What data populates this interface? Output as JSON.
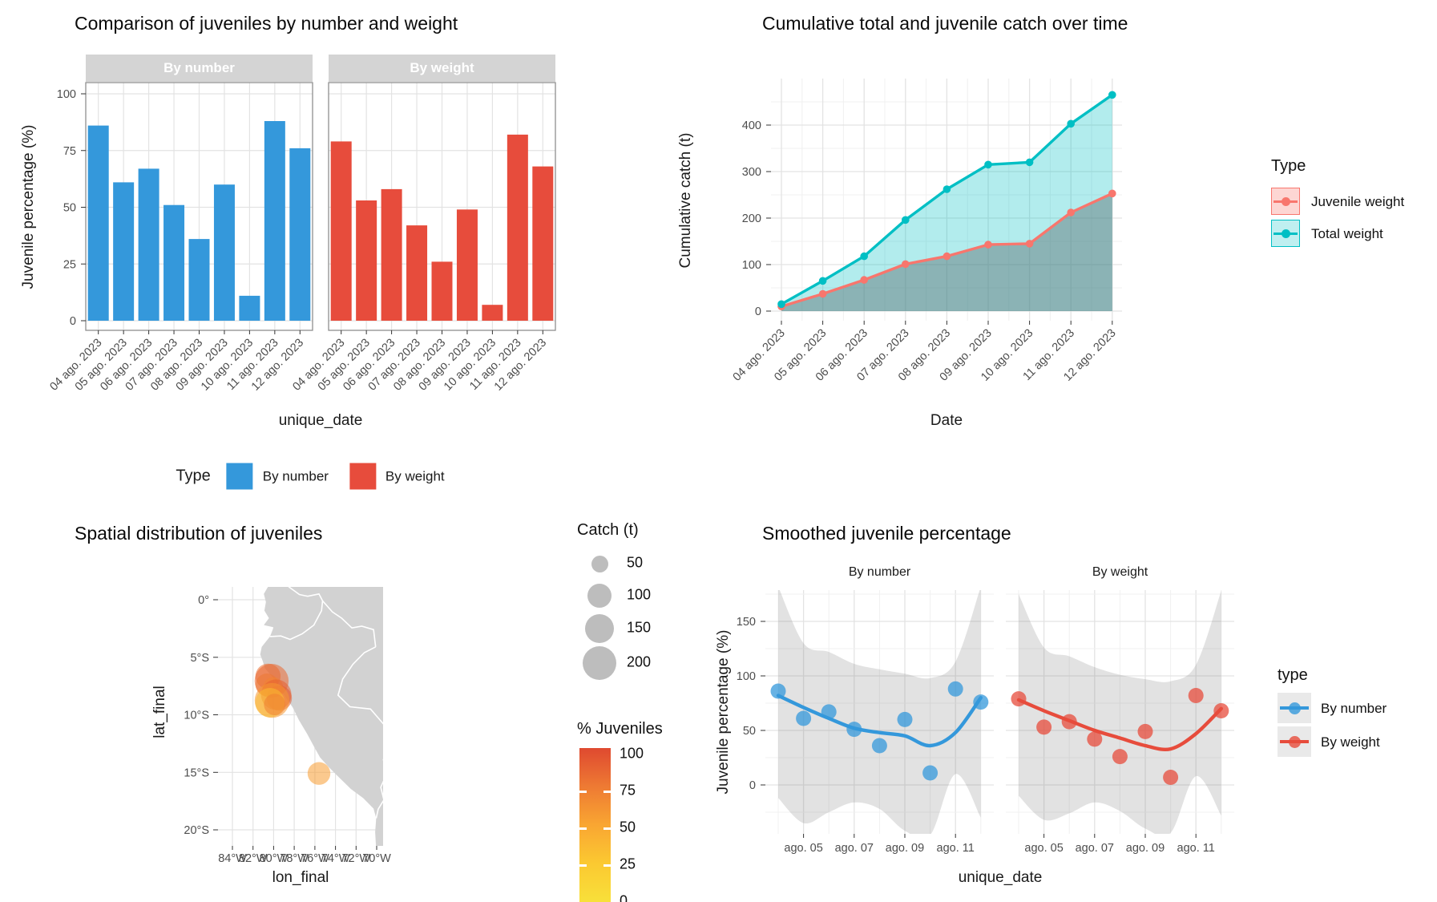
{
  "colors": {
    "blue": "#3498db",
    "red": "#e74c3c",
    "teal": "#00bfc4",
    "salmon": "#f8766d",
    "grid": "#e3e3e3",
    "grid_minor": "#f0f0f0",
    "panel_border": "#8f8f8f",
    "strip_bg": "#d4d4d4",
    "strip_text": "#ffffff",
    "axis_text": "#4d4d4d",
    "tick": "#333333",
    "band": "rgba(125,125,125,0.22)",
    "map_land": "#d2d2d2",
    "map_border": "#ffffff",
    "size_legend_circle": "#bdbdbd"
  },
  "bar_chart": {
    "title": "Comparison of juveniles by number and weight",
    "ylabel": "Juvenile percentage (%)",
    "xlabel": "unique_date",
    "facet_labels": [
      "By number",
      "By weight"
    ],
    "legend_title": "Type",
    "legend": [
      {
        "label": "By number"
      },
      {
        "label": "By weight"
      }
    ]
  },
  "cumulative_chart": {
    "title": "Cumulative total and juvenile catch over time",
    "ylabel": "Cumulative catch (t)",
    "xlabel": "Date",
    "legend_title": "Type",
    "legend": [
      {
        "label": "Juvenile weight"
      },
      {
        "label": "Total weight"
      }
    ]
  },
  "map_chart": {
    "title": "Spatial distribution of juveniles",
    "ylabel": "lat_final",
    "xlabel": "lon_final",
    "size_legend_title": "Catch (t)",
    "size_legend_values": [
      "50",
      "100",
      "150",
      "200"
    ],
    "color_legend_title": "% Juveniles",
    "color_legend_ticks": [
      "100",
      "75",
      "50",
      "25",
      "0"
    ]
  },
  "smooth_chart": {
    "title": "Smoothed juvenile percentage",
    "ylabel": "Juvenile percentage (%)",
    "xlabel": "unique_date",
    "facet_labels": [
      "By number",
      "By weight"
    ],
    "legend_title": "type",
    "legend": [
      {
        "label": "By number"
      },
      {
        "label": "By weight"
      }
    ]
  },
  "chart_data": [
    {
      "id": "juvenile_comparison_bars",
      "type": "bar",
      "title": "Comparison of juveniles by number and weight",
      "categories": [
        "04 ago. 2023",
        "05 ago. 2023",
        "06 ago. 2023",
        "07 ago. 2023",
        "08 ago. 2023",
        "09 ago. 2023",
        "10 ago. 2023",
        "11 ago. 2023",
        "12 ago. 2023"
      ],
      "series": [
        {
          "name": "By number",
          "color": "#3498db",
          "values": [
            86,
            61,
            67,
            51,
            36,
            60,
            11,
            88,
            76
          ]
        },
        {
          "name": "By weight",
          "color": "#e74c3c",
          "values": [
            79,
            53,
            58,
            42,
            26,
            49,
            7,
            82,
            68
          ]
        }
      ],
      "xlabel": "unique_date",
      "ylabel": "Juvenile percentage (%)",
      "ylim": [
        0,
        100
      ],
      "yticks": [
        0,
        25,
        50,
        75,
        100
      ],
      "legend_title": "Type",
      "legend_position": "bottom"
    },
    {
      "id": "cumulative_catch",
      "type": "line",
      "title": "Cumulative total and juvenile catch over time",
      "x": [
        "04 ago. 2023",
        "05 ago. 2023",
        "06 ago. 2023",
        "07 ago. 2023",
        "08 ago. 2023",
        "09 ago. 2023",
        "10 ago. 2023",
        "11 ago. 2023",
        "12 ago. 2023"
      ],
      "series": [
        {
          "name": "Juvenile weight",
          "color": "#f8766d",
          "values": [
            10,
            37,
            67,
            101,
            118,
            143,
            145,
            212,
            253
          ]
        },
        {
          "name": "Total weight",
          "color": "#00bfc4",
          "values": [
            15,
            65,
            118,
            196,
            262,
            315,
            320,
            403,
            465
          ]
        }
      ],
      "xlabel": "Date",
      "ylabel": "Cumulative catch (t)",
      "ylim": [
        0,
        490
      ],
      "yticks": [
        0,
        100,
        200,
        300,
        400
      ],
      "area": true,
      "legend_title": "Type",
      "legend_position": "right"
    },
    {
      "id": "spatial_distribution",
      "type": "scatter",
      "subtype": "bubble_map",
      "title": "Spatial distribution of juveniles",
      "xlabel": "lon_final",
      "ylabel": "lat_final",
      "xtick_lons": [
        -84,
        -82,
        -80,
        -78,
        -76,
        -74,
        -72,
        -70
      ],
      "xtick_labels": [
        "84°W",
        "82°W",
        "80°W",
        "78°W",
        "76°W",
        "74°W",
        "72°W",
        "70°W"
      ],
      "ytick_lats": [
        0,
        -5,
        -10,
        -15,
        -20
      ],
      "ytick_labels": [
        "0°",
        "5°S",
        "10°S",
        "15°S",
        "20°S"
      ],
      "points": [
        {
          "lon": -80.55,
          "lat": -6.65,
          "catch_t": 110,
          "pct_juveniles": 80
        },
        {
          "lon": -80.2,
          "lat": -7.05,
          "catch_t": 200,
          "pct_juveniles": 84
        },
        {
          "lon": -80.65,
          "lat": -7.4,
          "catch_t": 90,
          "pct_juveniles": 76
        },
        {
          "lon": -80.05,
          "lat": -7.6,
          "catch_t": 70,
          "pct_juveniles": 70
        },
        {
          "lon": -79.75,
          "lat": -8.25,
          "catch_t": 160,
          "pct_juveniles": 88
        },
        {
          "lon": -79.45,
          "lat": -8.55,
          "catch_t": 110,
          "pct_juveniles": 90
        },
        {
          "lon": -80.15,
          "lat": -8.75,
          "catch_t": 210,
          "pct_juveniles": 58
        },
        {
          "lon": -80.35,
          "lat": -8.95,
          "catch_t": 150,
          "pct_juveniles": 35
        },
        {
          "lon": -79.9,
          "lat": -9.1,
          "catch_t": 80,
          "pct_juveniles": 72
        },
        {
          "lon": -75.6,
          "lat": -15.1,
          "catch_t": 90,
          "pct_juveniles": 55
        }
      ],
      "size_legend": {
        "title": "Catch (t)",
        "values": [
          50,
          100,
          150,
          200
        ]
      },
      "color_legend": {
        "title": "% Juveniles",
        "domain": [
          0,
          100
        ],
        "ticks": [
          100,
          75,
          50,
          25,
          0
        ],
        "gradient_top_to_bottom": [
          "#df4930",
          "#ee7a33",
          "#f9a632",
          "#fbc931",
          "#f8e03a"
        ]
      }
    },
    {
      "id": "smoothed_juvenile_percentage",
      "type": "scatter",
      "subtype": "smooth_with_ci",
      "title": "Smoothed juvenile percentage",
      "x_days": [
        4,
        5,
        6,
        7,
        8,
        9,
        10,
        11,
        12
      ],
      "xtick_days": [
        5,
        7,
        9,
        11
      ],
      "xtick_labels": [
        "ago. 05",
        "ago. 07",
        "ago. 09",
        "ago. 11"
      ],
      "facets": [
        {
          "name": "By number",
          "color": "#3498db",
          "points": [
            86,
            61,
            67,
            51,
            36,
            60,
            11,
            88,
            76
          ],
          "smooth": [
            82,
            71,
            61,
            52,
            48,
            45,
            36,
            48,
            80
          ],
          "band_upper": [
            182,
            130,
            122,
            111,
            106,
            102,
            98,
            113,
            182
          ],
          "band_lower": [
            -12,
            -35,
            -25,
            -16,
            -22,
            -42,
            -46,
            10,
            -30
          ]
        },
        {
          "name": "By weight",
          "color": "#e74c3c",
          "points": [
            79,
            53,
            58,
            42,
            26,
            49,
            7,
            82,
            68
          ],
          "smooth": [
            78,
            68,
            59,
            50,
            43,
            36,
            33,
            47,
            70
          ],
          "band_upper": [
            175,
            126,
            118,
            108,
            101,
            97,
            95,
            110,
            178
          ],
          "band_lower": [
            -10,
            -32,
            -26,
            -16,
            -24,
            -40,
            -44,
            8,
            -28
          ]
        }
      ],
      "xlabel": "unique_date",
      "ylabel": "Juvenile percentage (%)",
      "ylim": [
        -45,
        185
      ],
      "yticks": [
        0,
        50,
        100,
        150
      ],
      "legend_title": "type"
    }
  ]
}
